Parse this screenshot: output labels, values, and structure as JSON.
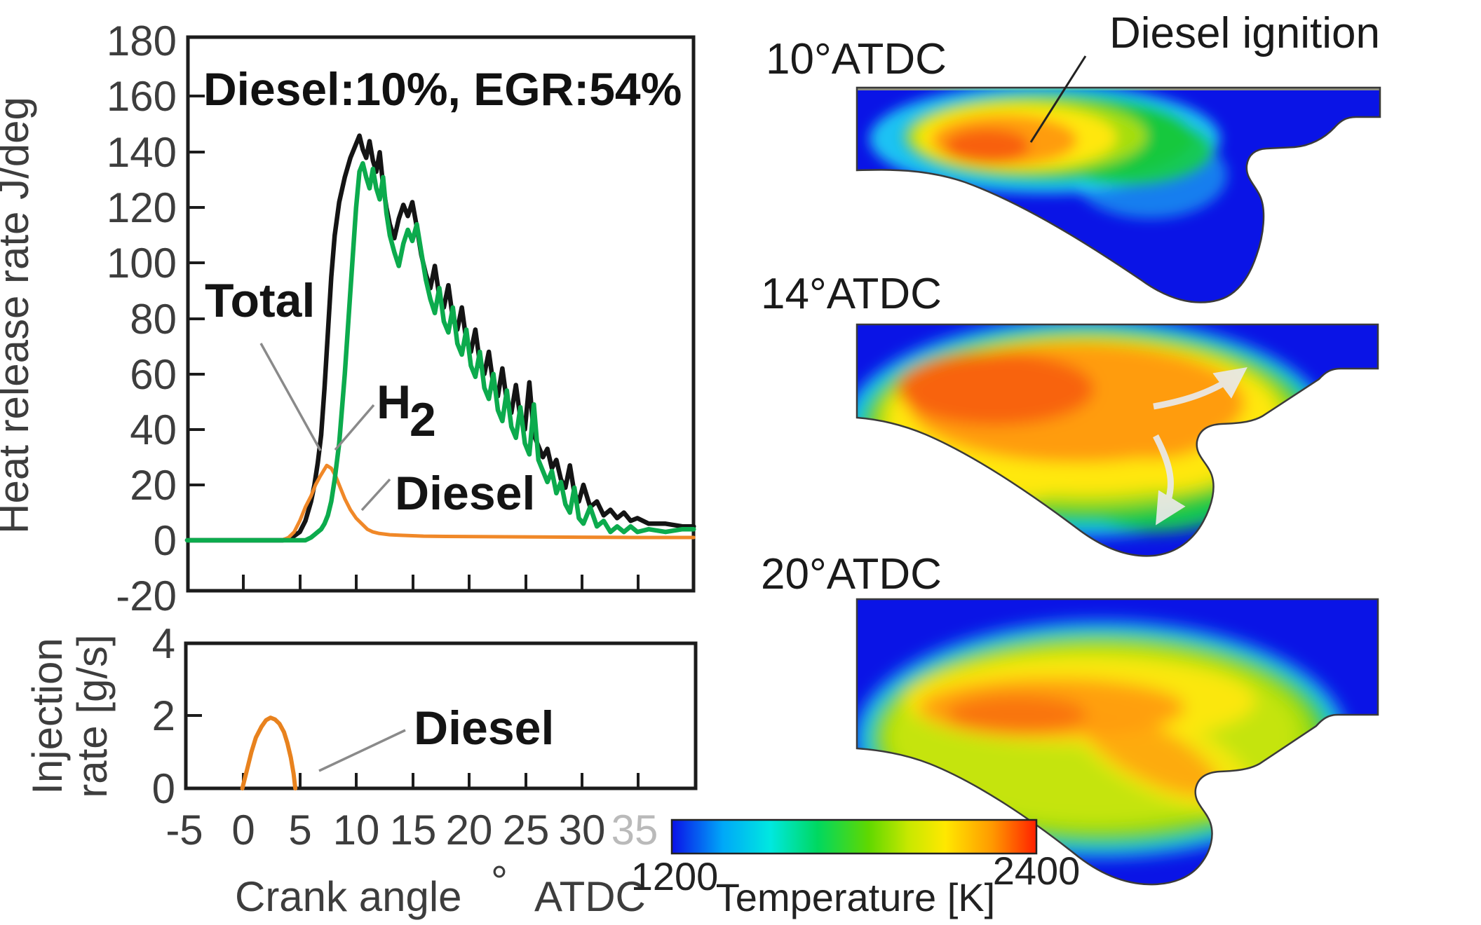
{
  "hrr_chart": {
    "condition": "Diesel:10%, EGR:54%",
    "ylabel": "Heat release rate  J/deg",
    "yticks": [
      "180",
      "160",
      "140",
      "120",
      "100",
      "80",
      "60",
      "40",
      "20",
      "0",
      "-20"
    ],
    "labels": {
      "total": "Total",
      "h2_base": "H",
      "h2_sub": "2",
      "diesel": "Diesel"
    }
  },
  "injection_chart": {
    "ylabel_line1": "Injection",
    "ylabel_line2": "rate [g/s]",
    "yticks": [
      "4",
      "2",
      "0"
    ],
    "label_diesel": "Diesel"
  },
  "xaxis": {
    "ticks": [
      "-5",
      "0",
      "5",
      "10",
      "15",
      "20",
      "25",
      "30"
    ],
    "tick_faint": "35",
    "label": "Crank angle",
    "degree": "°",
    "suffix": "ATDC"
  },
  "contour_panels": [
    {
      "label": "10°ATDC"
    },
    {
      "label": "14°ATDC"
    },
    {
      "label": "20°ATDC"
    }
  ],
  "ignition_annotation": "Diesel ignition",
  "colorbar": {
    "min": "1200",
    "label": "Temperature [K]",
    "max": "2400"
  },
  "colors": {
    "total": "#141414",
    "h2": "#0cab4d",
    "diesel": "#f08828",
    "domain_blue": "#0a14e6"
  },
  "chart_data": [
    {
      "type": "line",
      "title": "Heat release rate vs crank angle",
      "xlabel": "Crank angle ° ATDC",
      "ylabel": "Heat release rate J/deg",
      "xlim": [
        -5,
        40
      ],
      "ylim": [
        -20,
        180
      ],
      "annotation": "Diesel:10%, EGR:54%",
      "grid": false,
      "legend_position": "inline-labels",
      "series": [
        {
          "name": "Total",
          "color": "#141414",
          "x": [
            -5,
            2,
            3.5,
            4.3,
            5,
            5.5,
            6,
            6.3,
            6.6,
            6.9,
            7.2,
            7.5,
            7.8,
            8.1,
            8.5,
            9,
            9.5,
            10,
            10.3,
            10.6,
            10.9,
            11.2,
            11.5,
            11.8,
            12.1,
            12.4,
            12.7,
            13,
            13.4,
            13.8,
            14.2,
            14.6,
            15,
            15.4,
            15.8,
            16.2,
            16.6,
            17,
            17.4,
            17.8,
            18.2,
            18.6,
            19,
            19.4,
            19.8,
            20.2,
            20.6,
            21,
            21.4,
            21.8,
            22.2,
            22.6,
            23,
            23.4,
            23.8,
            24.2,
            24.6,
            25,
            25.4,
            25.8,
            26.2,
            26.6,
            27,
            27.4,
            27.8,
            28.2,
            28.6,
            29,
            29.4,
            29.8,
            30.2,
            30.8,
            31.4,
            32,
            32.6,
            33.2,
            33.8,
            34.4,
            35,
            36,
            37.5,
            39,
            40
          ],
          "y": [
            0,
            0,
            0,
            1,
            3,
            7,
            14,
            20,
            28,
            38,
            55,
            75,
            95,
            110,
            122,
            131,
            138,
            143,
            146,
            141,
            138,
            144,
            137,
            133,
            140,
            128,
            120,
            114,
            109,
            116,
            121,
            117,
            122,
            113,
            103,
            96,
            91,
            99,
            88,
            84,
            92,
            80,
            76,
            84,
            72,
            68,
            76,
            64,
            60,
            68,
            56,
            52,
            62,
            50,
            46,
            56,
            44,
            40,
            57,
            38,
            34,
            30,
            33,
            26,
            29,
            22,
            19,
            27,
            17,
            14,
            20,
            12,
            14,
            9,
            11,
            8,
            10,
            7,
            8,
            6,
            6,
            5,
            5
          ]
        },
        {
          "name": "H2",
          "color": "#0cab4d",
          "x": [
            -5,
            2,
            3.5,
            4.3,
            5,
            5.5,
            6,
            6.3,
            6.6,
            6.9,
            7.2,
            7.5,
            7.8,
            8.1,
            8.5,
            9,
            9.5,
            10,
            10.3,
            10.6,
            10.9,
            11.2,
            11.5,
            11.8,
            12.1,
            12.4,
            12.7,
            13,
            13.4,
            13.8,
            14.2,
            14.6,
            15,
            15.4,
            15.8,
            16.2,
            16.6,
            17,
            17.4,
            17.8,
            18.2,
            18.6,
            19,
            19.4,
            19.8,
            20.2,
            20.6,
            21,
            21.4,
            21.8,
            22.2,
            22.6,
            23,
            23.4,
            23.8,
            24.2,
            24.6,
            25,
            25.4,
            25.8,
            26.2,
            26.6,
            27,
            27.4,
            27.8,
            28.2,
            28.6,
            29,
            29.4,
            29.8,
            30.2,
            30.8,
            31.4,
            32,
            32.6,
            33.2,
            33.8,
            34.4,
            35,
            36,
            37.5,
            39,
            40
          ],
          "y": [
            0,
            0,
            0,
            0,
            0,
            0,
            1,
            2,
            3,
            4,
            6,
            9,
            14,
            22,
            35,
            60,
            90,
            120,
            133,
            136,
            131,
            127,
            134,
            127,
            123,
            131,
            118,
            110,
            104,
            99,
            107,
            112,
            108,
            114,
            104,
            94,
            87,
            82,
            91,
            79,
            75,
            84,
            71,
            67,
            76,
            63,
            59,
            68,
            55,
            51,
            60,
            47,
            43,
            54,
            41,
            37,
            48,
            35,
            31,
            49,
            29,
            25,
            21,
            25,
            17,
            21,
            13,
            10,
            19,
            8,
            6,
            12,
            5,
            7,
            3,
            5,
            3,
            5,
            3,
            4,
            3,
            4,
            4
          ]
        },
        {
          "name": "Diesel",
          "color": "#f08828",
          "x": [
            -5,
            3.4,
            4,
            4.5,
            5,
            5.5,
            6,
            6.4,
            6.8,
            7.1,
            7.4,
            7.8,
            8.2,
            8.6,
            9,
            9.5,
            10,
            10.5,
            11,
            11.5,
            12,
            13,
            14,
            16,
            18,
            22,
            26,
            30,
            35,
            40
          ],
          "y": [
            0,
            0,
            1,
            3,
            7,
            12,
            16,
            20,
            23,
            25,
            27,
            26,
            23,
            19,
            15,
            11,
            8,
            6,
            4,
            3,
            2.5,
            2,
            1.8,
            1.5,
            1.4,
            1.3,
            1.2,
            1.1,
            1,
            1
          ]
        }
      ]
    },
    {
      "type": "line",
      "title": "Diesel injection rate vs crank angle",
      "xlabel": "Crank angle ° ATDC",
      "ylabel": "Injection rate [g/s]",
      "xlim": [
        -5,
        40
      ],
      "ylim": [
        0,
        4
      ],
      "grid": false,
      "series": [
        {
          "name": "Diesel",
          "color": "#e8821e",
          "x": [
            -0.1,
            0.3,
            0.7,
            1.1,
            1.6,
            2,
            2.4,
            2.8,
            3.2,
            3.6,
            3.9,
            4.2,
            4.45,
            4.6
          ],
          "y": [
            0,
            0.5,
            1,
            1.4,
            1.7,
            1.88,
            1.95,
            1.9,
            1.78,
            1.55,
            1.25,
            0.85,
            0.4,
            0
          ]
        }
      ]
    },
    {
      "type": "heatmap",
      "title": "In-cylinder temperature contours",
      "panels": [
        "10°ATDC",
        "14°ATDC",
        "20°ATDC"
      ],
      "colorbar": {
        "label": "Temperature [K]",
        "min": 1200,
        "max": 2400
      },
      "annotation": "Diesel ignition"
    }
  ]
}
